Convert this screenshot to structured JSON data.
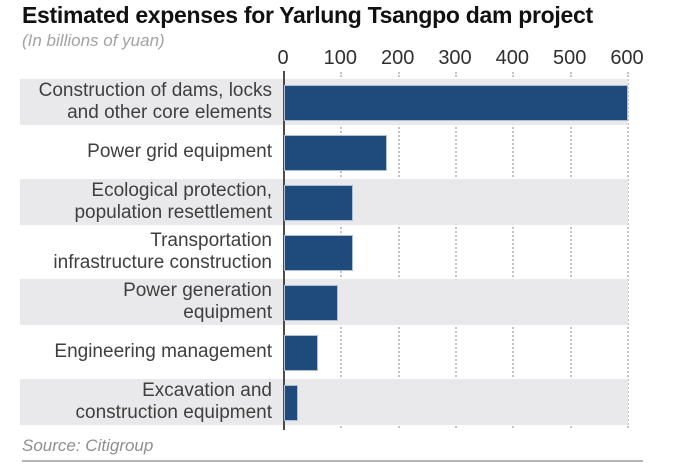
{
  "title": "Estimated expenses for Yarlung Tsangpo dam project",
  "subtitle": "(In billions of yuan)",
  "source": "Source: Citigroup",
  "colors": {
    "bar_fill": "#1e4b7b",
    "bar_border": "#aebfd2",
    "row_stripe": "#e9e9eb",
    "axis_line": "#4c4c4c",
    "gridline": "#c4c4c4",
    "label_text": "#3f3f3f"
  },
  "chart_data": {
    "type": "bar",
    "orientation": "horizontal",
    "title": "Estimated expenses for Yarlung Tsangpo dam project",
    "subtitle": "(In billions of yuan)",
    "categories": [
      "Construction of dams, locks\nand other core elements",
      "Power grid equipment",
      "Ecological protection,\npopulation resettlement",
      "Transportation\ninfrastructure construction",
      "Power generation\nequipment",
      "Engineering management",
      "Excavation and\nconstruction equipment"
    ],
    "values": [
      600,
      180,
      120,
      120,
      95,
      60,
      25
    ],
    "xlabel": "",
    "ylabel": "",
    "xlim": [
      0,
      600
    ],
    "x_ticks": [
      0,
      100,
      200,
      300,
      400,
      500,
      600
    ],
    "grid": "dotted-vertical",
    "legend": "none",
    "stripe_rows": [
      0,
      2,
      4,
      6
    ],
    "source": "Source: Citigroup"
  }
}
